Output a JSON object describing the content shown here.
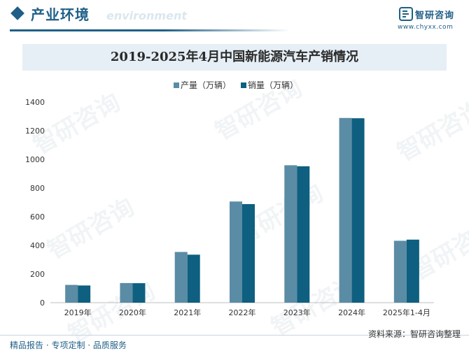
{
  "header": {
    "title": "产业环境",
    "subtitle": "environment"
  },
  "logo": {
    "name": "智研咨询",
    "url": "www.chyxx.com"
  },
  "watermark": "智研咨询",
  "footer": {
    "left": "精品报告 · 专项定制 · 品质服务",
    "source": "资料来源：智研咨询整理"
  },
  "colors": {
    "accent": "#1f5f87",
    "production": "#5b8ca5",
    "sales": "#0e5f80",
    "title_band": "#e6eff5"
  },
  "chart_data": {
    "type": "bar",
    "title": "2019-2025年4月中国新能源汽车产销情况",
    "xlabel": "",
    "ylabel": "",
    "ylim": [
      0,
      1400
    ],
    "yticks": [
      0,
      200,
      400,
      600,
      800,
      1000,
      1200,
      1400
    ],
    "grid": false,
    "legend_position": "top-center",
    "categories": [
      "2019年",
      "2020年",
      "2021年",
      "2022年",
      "2023年",
      "2024年",
      "2025年1-4月"
    ],
    "series": [
      {
        "name": "产量（万辆）",
        "values": [
          124,
          137,
          354,
          706,
          959,
          1289,
          432
        ]
      },
      {
        "name": "销量（万辆）",
        "values": [
          120,
          136,
          335,
          688,
          952,
          1287,
          440
        ]
      }
    ]
  }
}
